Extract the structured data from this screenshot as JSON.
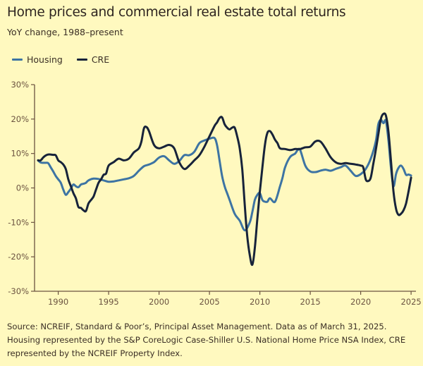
{
  "title": "Home prices and commercial real estate total returns",
  "subtitle": "YoY change, 1988–present",
  "legend": [
    {
      "name": "Housing",
      "color": "#3d74a3"
    },
    {
      "name": "CRE",
      "color": "#17233a"
    }
  ],
  "source": "Source: NCREIF, Standard & Poor’s, Principal Asset Management. Data as of March 31, 2025. Housing represented by the S&P CoreLogic Case-Shiller U.S. National Home Price NSA Index, CRE represented by the NCREIF Property Index.",
  "chart_data": {
    "type": "line",
    "title": "Home prices and commercial real estate total returns",
    "subtitle": "YoY change, 1988–present",
    "xlabel": "",
    "ylabel": "",
    "xlim": [
      1987.6,
      2025.4
    ],
    "ylim": [
      -30,
      30
    ],
    "x_ticks": [
      1990,
      1995,
      2000,
      2005,
      2010,
      2015,
      2020,
      2025
    ],
    "x_tick_labels": [
      "1990",
      "1995",
      "2000",
      "2005",
      "2010",
      "2015",
      "2020",
      "2025"
    ],
    "y_ticks": [
      30,
      20,
      10,
      0,
      -10,
      -20,
      -30
    ],
    "y_tick_labels": [
      "30%",
      "20%",
      "10%",
      "0%",
      "-10%",
      "-20%",
      "-30%"
    ],
    "grid": false,
    "legend_position": "top-left",
    "series": [
      {
        "name": "Housing",
        "color": "#3d74a3",
        "x": [
          1988.0,
          1988.25,
          1988.5,
          1988.75,
          1989.0,
          1989.25,
          1989.5,
          1989.75,
          1990.0,
          1990.25,
          1990.5,
          1990.75,
          1991.0,
          1991.25,
          1991.5,
          1991.75,
          1992.0,
          1992.25,
          1992.5,
          1992.75,
          1993.0,
          1993.5,
          1994.0,
          1994.5,
          1995.0,
          1995.5,
          1996.0,
          1996.5,
          1997.0,
          1997.5,
          1998.0,
          1998.5,
          1999.0,
          1999.5,
          2000.0,
          2000.5,
          2001.0,
          2001.5,
          2002.0,
          2002.5,
          2003.0,
          2003.5,
          2004.0,
          2004.5,
          2005.0,
          2005.5,
          2005.75,
          2006.0,
          2006.25,
          2006.5,
          2006.75,
          2007.0,
          2007.5,
          2008.0,
          2008.5,
          2009.0,
          2009.25,
          2009.5,
          2009.75,
          2010.0,
          2010.25,
          2010.5,
          2010.75,
          2011.0,
          2011.5,
          2012.0,
          2012.25,
          2012.5,
          2013.0,
          2013.5,
          2013.75,
          2014.0,
          2014.5,
          2015.0,
          2015.5,
          2016.0,
          2016.5,
          2017.0,
          2017.5,
          2018.0,
          2018.5,
          2019.0,
          2019.5,
          2020.0,
          2020.5,
          2021.0,
          2021.5,
          2021.75,
          2022.0,
          2022.25,
          2022.5,
          2022.75,
          2023.0,
          2023.25,
          2023.5,
          2023.75,
          2024.0,
          2024.25,
          2024.5,
          2024.75,
          2025.0
        ],
        "values": [
          8.0,
          7.4,
          7.3,
          7.3,
          7.2,
          6.0,
          4.8,
          3.5,
          2.5,
          1.5,
          -0.5,
          -2.0,
          -1.2,
          -0.2,
          1.0,
          0.5,
          0.2,
          1.0,
          1.2,
          1.5,
          2.2,
          2.7,
          2.6,
          2.2,
          1.8,
          1.9,
          2.2,
          2.5,
          2.8,
          3.5,
          5.0,
          6.3,
          6.8,
          7.5,
          8.8,
          9.2,
          8.0,
          7.0,
          7.8,
          9.5,
          9.5,
          10.5,
          13.0,
          13.8,
          14.3,
          14.5,
          12.5,
          8.0,
          3.5,
          0.5,
          -1.5,
          -3.5,
          -7.5,
          -9.5,
          -12.3,
          -10.0,
          -7.0,
          -3.5,
          -2.0,
          -1.5,
          -3.5,
          -4.0,
          -4.0,
          -3.0,
          -4.0,
          0.5,
          3.0,
          6.0,
          9.0,
          10.0,
          11.0,
          11.0,
          6.5,
          4.8,
          4.6,
          5.0,
          5.3,
          5.0,
          5.5,
          6.0,
          6.5,
          5.0,
          3.5,
          4.0,
          5.5,
          8.5,
          13.5,
          18.5,
          19.8,
          18.8,
          19.5,
          14.0,
          6.0,
          0.5,
          4.0,
          5.8,
          6.5,
          5.5,
          3.8,
          3.9,
          3.6
        ]
      },
      {
        "name": "CRE",
        "color": "#17233a",
        "x": [
          1988.0,
          1988.25,
          1988.5,
          1988.75,
          1989.0,
          1989.25,
          1989.5,
          1989.75,
          1990.0,
          1990.25,
          1990.5,
          1990.75,
          1991.0,
          1991.25,
          1991.5,
          1991.75,
          1992.0,
          1992.25,
          1992.5,
          1992.75,
          1993.0,
          1993.25,
          1993.5,
          1993.75,
          1994.0,
          1994.25,
          1994.5,
          1994.75,
          1995.0,
          1995.5,
          1996.0,
          1996.5,
          1997.0,
          1997.5,
          1998.0,
          1998.25,
          1998.5,
          1998.75,
          1999.0,
          1999.5,
          2000.0,
          2000.5,
          2001.0,
          2001.5,
          2002.0,
          2002.5,
          2003.0,
          2003.5,
          2004.0,
          2004.5,
          2005.0,
          2005.5,
          2005.75,
          2006.0,
          2006.25,
          2006.5,
          2006.75,
          2007.0,
          2007.25,
          2007.5,
          2007.75,
          2008.0,
          2008.25,
          2008.5,
          2008.75,
          2009.0,
          2009.25,
          2009.5,
          2009.75,
          2010.0,
          2010.25,
          2010.5,
          2010.75,
          2011.0,
          2011.25,
          2011.5,
          2011.75,
          2012.0,
          2012.5,
          2013.0,
          2013.5,
          2014.0,
          2014.5,
          2015.0,
          2015.5,
          2016.0,
          2016.5,
          2017.0,
          2017.5,
          2018.0,
          2018.5,
          2019.0,
          2019.5,
          2020.0,
          2020.25,
          2020.5,
          2020.75,
          2021.0,
          2021.25,
          2021.5,
          2021.75,
          2022.0,
          2022.25,
          2022.5,
          2022.75,
          2023.0,
          2023.25,
          2023.5,
          2023.75,
          2024.0,
          2024.25,
          2024.5,
          2024.75,
          2025.0
        ],
        "values": [
          8.0,
          8.0,
          8.8,
          9.4,
          9.7,
          9.7,
          9.6,
          9.5,
          8.0,
          7.5,
          6.8,
          5.5,
          2.5,
          0.5,
          -1.5,
          -3.0,
          -5.5,
          -5.8,
          -6.5,
          -6.7,
          -4.5,
          -3.5,
          -2.5,
          -0.5,
          1.5,
          2.5,
          3.8,
          4.2,
          6.5,
          7.5,
          8.5,
          8.0,
          8.5,
          10.3,
          11.5,
          13.5,
          17.3,
          17.7,
          16.5,
          12.5,
          11.5,
          12.0,
          12.5,
          11.5,
          7.5,
          5.5,
          6.5,
          8.0,
          9.5,
          12.0,
          15.0,
          18.0,
          19.0,
          20.3,
          20.5,
          18.5,
          17.5,
          17.0,
          17.5,
          17.5,
          15.0,
          11.5,
          5.5,
          -5.0,
          -14.0,
          -19.5,
          -22.3,
          -17.5,
          -9.0,
          -1.0,
          6.0,
          12.5,
          16.0,
          16.5,
          15.5,
          14.0,
          13.0,
          11.5,
          11.3,
          11.0,
          11.3,
          11.3,
          11.8,
          12.0,
          13.5,
          13.5,
          11.5,
          9.0,
          7.5,
          7.0,
          7.2,
          7.0,
          6.8,
          6.5,
          6.0,
          2.5,
          2.0,
          3.0,
          7.0,
          11.0,
          15.5,
          20.0,
          21.5,
          21.0,
          16.5,
          8.0,
          -1.0,
          -6.0,
          -7.8,
          -7.5,
          -6.5,
          -4.5,
          -1.0,
          3.0
        ]
      }
    ]
  }
}
